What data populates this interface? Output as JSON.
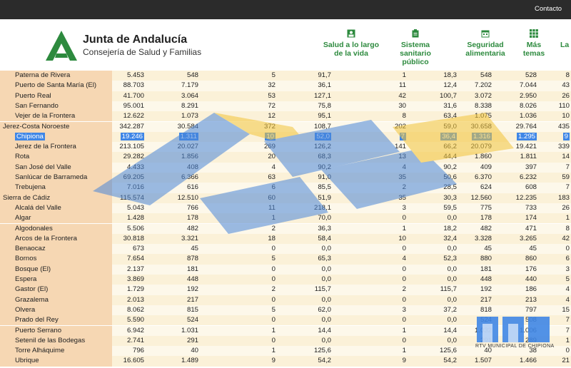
{
  "topbar": {
    "contact_label": "Contacto"
  },
  "header": {
    "org_title": "Junta de Andalucía",
    "org_subtitle": "Consejería de Salud y Familias",
    "nav": [
      {
        "label": "Salud a lo largo de la vida",
        "icon": "person-card-icon"
      },
      {
        "label": "Sistema sanitario público",
        "icon": "clipboard-icon"
      },
      {
        "label": "Seguridad alimentaria",
        "icon": "calendar-icon"
      },
      {
        "label": "Más temas",
        "icon": "grid-icon"
      },
      {
        "label": "La",
        "icon": ""
      }
    ]
  },
  "colors": {
    "brand_green": "#2d8a3e",
    "selection_blue": "#3f86e6",
    "name_column_bg": "#f6d7b3"
  },
  "table": {
    "rows": [
      {
        "name": "Paterna de Rivera",
        "c1": "5.453",
        "c2": "548",
        "c3": "5",
        "c4": "91,7",
        "c5": "1",
        "c6": "18,3",
        "c7": "548",
        "c8": "528",
        "c9": "8"
      },
      {
        "name": "Puerto de Santa María (El)",
        "c1": "88.703",
        "c2": "7.179",
        "c3": "32",
        "c4": "36,1",
        "c5": "11",
        "c6": "12,4",
        "c7": "7.202",
        "c8": "7.044",
        "c9": "43"
      },
      {
        "name": "Puerto Real",
        "c1": "41.700",
        "c2": "3.064",
        "c3": "53",
        "c4": "127,1",
        "c5": "42",
        "c6": "100,7",
        "c7": "3.072",
        "c8": "2.950",
        "c9": "26"
      },
      {
        "name": "San Fernando",
        "c1": "95.001",
        "c2": "8.291",
        "c3": "72",
        "c4": "75,8",
        "c5": "30",
        "c6": "31,6",
        "c7": "8.338",
        "c8": "8.026",
        "c9": "110"
      },
      {
        "name": "Vejer de la Frontera",
        "c1": "12.622",
        "c2": "1.073",
        "c3": "12",
        "c4": "95,1",
        "c5": "8",
        "c6": "63,4",
        "c7": "1.075",
        "c8": "1.036",
        "c9": "10"
      },
      {
        "name": "Jerez-Costa Noroeste",
        "district": true,
        "c1": "342.287",
        "c2": "30.584",
        "c3": "372",
        "c4": "108,7",
        "c5": "202",
        "c6": "59,0",
        "c7": "30.658",
        "c8": "29.764",
        "c9": "435"
      },
      {
        "name": "Chipiona",
        "selected": true,
        "c1": "19.246",
        "c2": "1.311",
        "c3": "10",
        "c4": "52,0",
        "c5": "7",
        "c6": "36,4",
        "c7": "1.316",
        "c8": "1.295",
        "c9": "9"
      },
      {
        "name": "Jerez de la Frontera",
        "c1": "213.105",
        "c2": "20.027",
        "c3": "269",
        "c4": "126,2",
        "c5": "141",
        "c6": "66,2",
        "c7": "20.079",
        "c8": "19.421",
        "c9": "339"
      },
      {
        "name": "Rota",
        "c1": "29.282",
        "c2": "1.856",
        "c3": "20",
        "c4": "68,3",
        "c5": "13",
        "c6": "44,4",
        "c7": "1.860",
        "c8": "1.811",
        "c9": "14"
      },
      {
        "name": "San José del Valle",
        "c1": "4.433",
        "c2": "408",
        "c3": "4",
        "c4": "90,2",
        "c5": "4",
        "c6": "90,2",
        "c7": "409",
        "c8": "397",
        "c9": "7"
      },
      {
        "name": "Sanlúcar de Barrameda",
        "c1": "69.205",
        "c2": "6.366",
        "c3": "63",
        "c4": "91,0",
        "c5": "35",
        "c6": "50,6",
        "c7": "6.370",
        "c8": "6.232",
        "c9": "59"
      },
      {
        "name": "Trebujena",
        "c1": "7.016",
        "c2": "616",
        "c3": "6",
        "c4": "85,5",
        "c5": "2",
        "c6": "28,5",
        "c7": "624",
        "c8": "608",
        "c9": "7"
      },
      {
        "name": "Sierra de Cádiz",
        "district": true,
        "c1": "115.574",
        "c2": "12.510",
        "c3": "60",
        "c4": "51,9",
        "c5": "35",
        "c6": "30,3",
        "c7": "12.560",
        "c8": "12.235",
        "c9": "183"
      },
      {
        "name": "Alcalá del Valle",
        "c1": "5.043",
        "c2": "766",
        "c3": "11",
        "c4": "218,1",
        "c5": "3",
        "c6": "59,5",
        "c7": "775",
        "c8": "733",
        "c9": "26"
      },
      {
        "name": "Algar",
        "c1": "1.428",
        "c2": "178",
        "c3": "1",
        "c4": "70,0",
        "c5": "0",
        "c6": "0,0",
        "c7": "178",
        "c8": "174",
        "c9": "1"
      },
      {
        "name": "Algodonales",
        "c1": "5.506",
        "c2": "482",
        "c3": "2",
        "c4": "36,3",
        "c5": "1",
        "c6": "18,2",
        "c7": "482",
        "c8": "471",
        "c9": "8"
      },
      {
        "name": "Arcos de la Frontera",
        "c1": "30.818",
        "c2": "3.321",
        "c3": "18",
        "c4": "58,4",
        "c5": "10",
        "c6": "32,4",
        "c7": "3.328",
        "c8": "3.265",
        "c9": "42"
      },
      {
        "name": "Benaocaz",
        "c1": "673",
        "c2": "45",
        "c3": "0",
        "c4": "0,0",
        "c5": "0",
        "c6": "0,0",
        "c7": "45",
        "c8": "45",
        "c9": "0"
      },
      {
        "name": "Bornos",
        "c1": "7.654",
        "c2": "878",
        "c3": "5",
        "c4": "65,3",
        "c5": "4",
        "c6": "52,3",
        "c7": "880",
        "c8": "860",
        "c9": "6"
      },
      {
        "name": "Bosque (El)",
        "c1": "2.137",
        "c2": "181",
        "c3": "0",
        "c4": "0,0",
        "c5": "0",
        "c6": "0,0",
        "c7": "181",
        "c8": "176",
        "c9": "3"
      },
      {
        "name": "Espera",
        "c1": "3.869",
        "c2": "448",
        "c3": "0",
        "c4": "0,0",
        "c5": "0",
        "c6": "0,0",
        "c7": "448",
        "c8": "440",
        "c9": "5"
      },
      {
        "name": "Gastor (El)",
        "c1": "1.729",
        "c2": "192",
        "c3": "2",
        "c4": "115,7",
        "c5": "2",
        "c6": "115,7",
        "c7": "192",
        "c8": "186",
        "c9": "4"
      },
      {
        "name": "Grazalema",
        "c1": "2.013",
        "c2": "217",
        "c3": "0",
        "c4": "0,0",
        "c5": "0",
        "c6": "0,0",
        "c7": "217",
        "c8": "213",
        "c9": "4"
      },
      {
        "name": "Olvera",
        "c1": "8.062",
        "c2": "815",
        "c3": "5",
        "c4": "62,0",
        "c5": "3",
        "c6": "37,2",
        "c7": "818",
        "c8": "797",
        "c9": "15"
      },
      {
        "name": "Prado del Rey",
        "c1": "5.590",
        "c2": "524",
        "c3": "0",
        "c4": "0,0",
        "c5": "0",
        "c6": "0,0",
        "c7": "524",
        "c8": "508",
        "c9": "7"
      },
      {
        "name": "Puerto Serrano",
        "c1": "6.942",
        "c2": "1.031",
        "c3": "1",
        "c4": "14,4",
        "c5": "1",
        "c6": "14,4",
        "c7": "1.032",
        "c8": "1.006",
        "c9": "7"
      },
      {
        "name": "Setenil de las Bodegas",
        "c1": "2.741",
        "c2": "291",
        "c3": "0",
        "c4": "0,0",
        "c5": "0",
        "c6": "0,0",
        "c7": "291",
        "c8": "289",
        "c9": "1"
      },
      {
        "name": "Torre Alháquime",
        "c1": "796",
        "c2": "40",
        "c3": "1",
        "c4": "125,6",
        "c5": "1",
        "c6": "125,6",
        "c7": "40",
        "c8": "38",
        "c9": "0"
      },
      {
        "name": "Ubrique",
        "c1": "16.605",
        "c2": "1.489",
        "c3": "9",
        "c4": "54,2",
        "c5": "9",
        "c6": "54,2",
        "c7": "1.507",
        "c8": "1.466",
        "c9": "21"
      }
    ]
  },
  "watermark": {
    "broadcaster": "RTV MUNICIPAL DE CHIPIONA"
  }
}
